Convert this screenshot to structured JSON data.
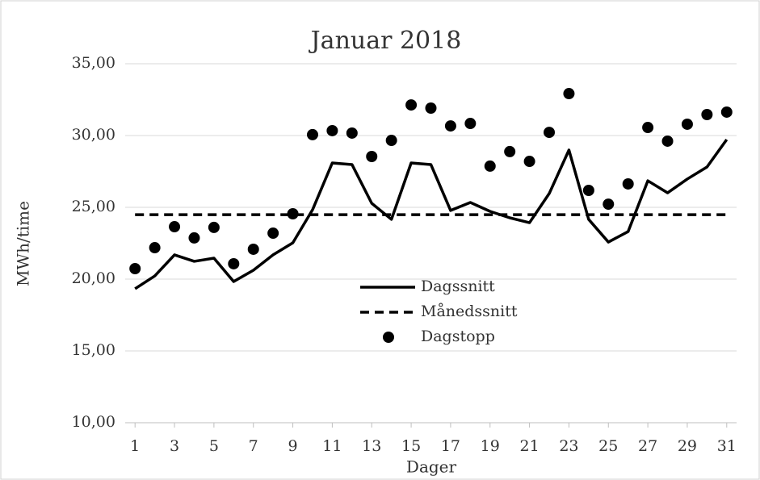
{
  "chart_data": {
    "type": "line",
    "title": "Januar 2018",
    "xlabel": "Dager",
    "ylabel": "MWh/time",
    "x": [
      1,
      2,
      3,
      4,
      5,
      6,
      7,
      8,
      9,
      10,
      11,
      12,
      13,
      14,
      15,
      16,
      17,
      18,
      19,
      20,
      21,
      22,
      23,
      24,
      25,
      26,
      27,
      28,
      29,
      30,
      31
    ],
    "xlim": [
      0.5,
      31.5
    ],
    "xticks": [
      1,
      3,
      5,
      7,
      9,
      11,
      13,
      15,
      17,
      19,
      21,
      23,
      25,
      27,
      29,
      31
    ],
    "ylim": [
      10,
      35
    ],
    "yticks": [
      {
        "value": 10,
        "label": "10,00"
      },
      {
        "value": 15,
        "label": "15,00"
      },
      {
        "value": 20,
        "label": "20,00"
      },
      {
        "value": 25,
        "label": "25,00"
      },
      {
        "value": 30,
        "label": "30,00"
      },
      {
        "value": 35,
        "label": "35,00"
      }
    ],
    "grid": true,
    "legend": "center",
    "series": [
      {
        "name": "Dagssnitt",
        "color": "#000000",
        "style": "solid",
        "values": [
          19.33,
          20.22,
          21.69,
          21.24,
          21.46,
          19.83,
          20.62,
          21.69,
          22.53,
          24.83,
          28.09,
          27.98,
          25.28,
          24.16,
          28.09,
          27.98,
          24.78,
          25.34,
          24.72,
          24.27,
          23.93,
          25.96,
          28.99,
          24.16,
          22.58,
          23.31,
          26.85,
          26.01,
          26.97,
          27.81,
          29.72
        ]
      },
      {
        "name": "Månedssnitt",
        "color": "#000000",
        "style": "dashed",
        "values": [
          24.49,
          24.49,
          24.49,
          24.49,
          24.49,
          24.49,
          24.49,
          24.49,
          24.49,
          24.49,
          24.49,
          24.49,
          24.49,
          24.49,
          24.49,
          24.49,
          24.49,
          24.49,
          24.49,
          24.49,
          24.49,
          24.49,
          24.49,
          24.49,
          24.49,
          24.49,
          24.49,
          24.49,
          24.49,
          24.49,
          24.49
        ]
      },
      {
        "name": "Dagstopp",
        "color": "#000000",
        "style": "marker",
        "values": [
          20.73,
          22.19,
          23.65,
          22.87,
          23.6,
          21.07,
          22.08,
          23.2,
          24.55,
          30.06,
          30.34,
          30.17,
          28.54,
          29.66,
          32.13,
          31.91,
          30.67,
          30.84,
          27.87,
          28.88,
          28.2,
          30.22,
          32.92,
          26.18,
          25.22,
          26.63,
          30.56,
          29.61,
          30.79,
          31.46,
          31.63
        ]
      }
    ]
  }
}
